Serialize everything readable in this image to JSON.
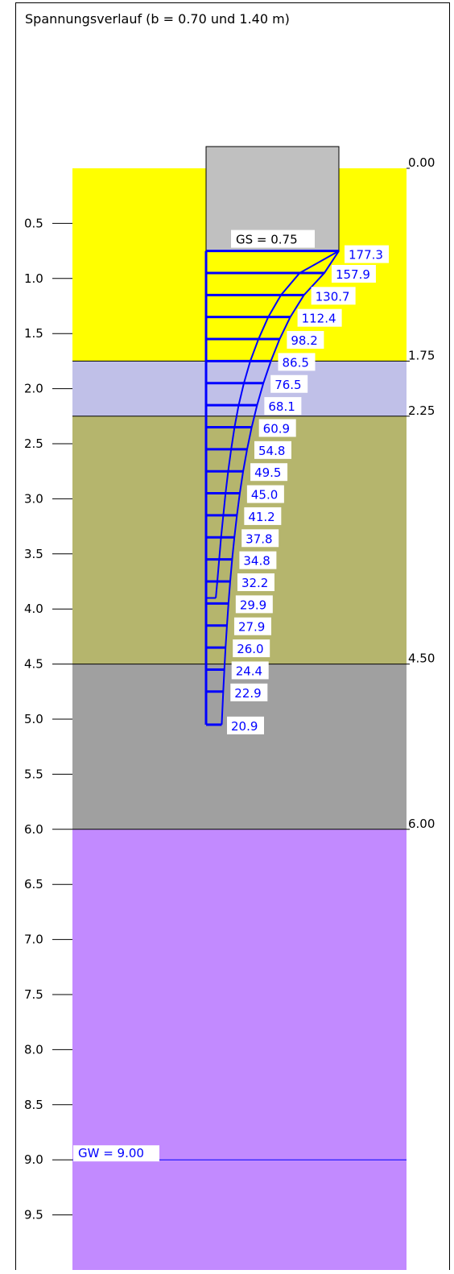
{
  "title": "Spannungsverlauf (b = 0.70 und 1.40 m)",
  "colors": {
    "frame": "#000000",
    "stress": "#0000ff",
    "foundation": "#c0c0c0",
    "layer_yellow": "#ffff00",
    "layer_lavender": "#c0c0e8",
    "layer_olive": "#b5b56d",
    "layer_gray": "#a0a0a0",
    "layer_purple": "#c28aff",
    "groundwater": "#0000ff"
  },
  "depth_axis": {
    "min": 0.0,
    "max": 10.0,
    "ticks": [
      "0.5",
      "1.0",
      "1.5",
      "2.0",
      "2.5",
      "3.0",
      "3.5",
      "4.0",
      "4.5",
      "5.0",
      "5.5",
      "6.0",
      "6.5",
      "7.0",
      "7.5",
      "8.0",
      "8.5",
      "9.0",
      "9.5"
    ]
  },
  "layers": [
    {
      "top": 0.0,
      "bottom": 1.75,
      "color": "#ffff00"
    },
    {
      "top": 1.75,
      "bottom": 2.25,
      "color": "#c0c0e8"
    },
    {
      "top": 2.25,
      "bottom": 4.5,
      "color": "#b5b56d"
    },
    {
      "top": 4.5,
      "bottom": 6.0,
      "color": "#a0a0a0"
    },
    {
      "top": 6.0,
      "bottom": 10.0,
      "color": "#c28aff"
    }
  ],
  "boundary_labels": [
    "0.00",
    "1.75",
    "2.25",
    "4.50",
    "6.00"
  ],
  "foundation": {
    "label": "GS = 0.75",
    "base_depth": 0.75
  },
  "groundwater": {
    "label": "GW = 9.00",
    "depth": 9.0
  },
  "chart_data": {
    "type": "line",
    "title": "Spannungsverlauf (b = 0.70 und 1.40 m)",
    "series": [
      {
        "name": "",
        "depths": [
          0.75,
          0.95,
          1.15,
          1.35,
          1.55,
          1.75,
          1.95,
          2.15,
          2.35,
          2.55,
          2.75,
          2.95,
          3.15,
          3.35,
          3.55,
          3.75,
          3.95,
          4.15,
          4.35,
          4.55,
          4.75,
          5.05
        ],
        "values": [
          177.3,
          157.9,
          130.7,
          112.4,
          98.2,
          86.5,
          76.5,
          68.1,
          60.9,
          54.8,
          49.5,
          45.0,
          41.2,
          37.8,
          34.8,
          32.2,
          29.9,
          27.9,
          26.0,
          24.4,
          22.9,
          20.9
        ],
        "labels": [
          "177.3",
          "157.9",
          "130.7",
          "112.4",
          "98.2",
          "86.5",
          "76.5",
          "68.1",
          "60.9",
          "54.8",
          "49.5",
          "45.0",
          "41.2",
          "37.8",
          "34.8",
          "32.2",
          "29.9",
          "27.9",
          "26.0",
          "24.4",
          "22.9",
          "20.9"
        ]
      },
      {
        "name": "",
        "depths": [
          0.75,
          0.95,
          1.15,
          1.35,
          1.55,
          1.75,
          1.95,
          2.15,
          2.35,
          2.55,
          2.75,
          2.95,
          3.15,
          3.35,
          3.55,
          3.75,
          3.9
        ],
        "values": [
          177.3,
          125.0,
          100.0,
          83.0,
          70.0,
          59.0,
          50.5,
          43.5,
          38.0,
          33.5,
          29.5,
          26.0,
          23.0,
          20.0,
          17.5,
          15.0,
          13.0
        ]
      }
    ]
  }
}
